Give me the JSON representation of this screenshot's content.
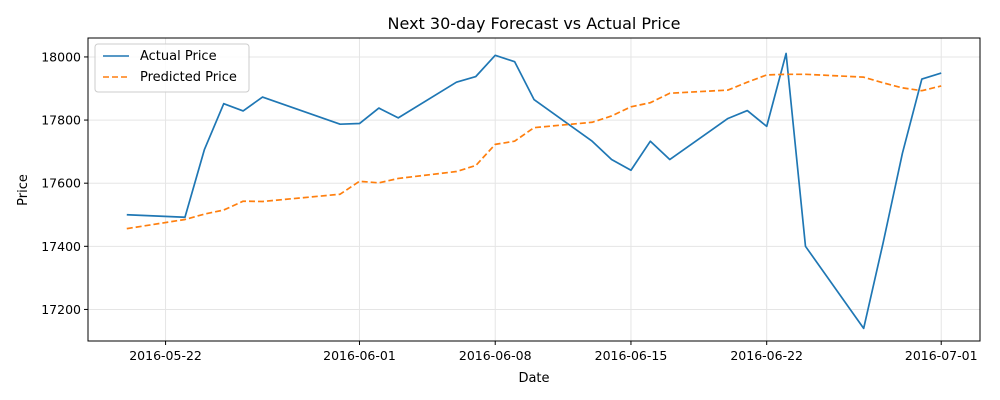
{
  "chart_data": {
    "type": "line",
    "title": "Next 30-day Forecast vs Actual Price",
    "xlabel": "Date",
    "ylabel": "Price",
    "xlim": [
      "2016-05-18",
      "2016-07-03"
    ],
    "ylim": [
      17100,
      18060
    ],
    "x_ticks": [
      "2016-05-22",
      "2016-06-01",
      "2016-06-08",
      "2016-06-15",
      "2016-06-22",
      "2016-07-01"
    ],
    "y_ticks": [
      17200,
      17400,
      17600,
      17800,
      18000
    ],
    "grid": true,
    "legend_position": "top-left",
    "series": [
      {
        "name": "Actual Price",
        "color": "#1f77b4",
        "style": "solid",
        "x": [
          "2016-05-20",
          "2016-05-23",
          "2016-05-24",
          "2016-05-25",
          "2016-05-26",
          "2016-05-27",
          "2016-05-31",
          "2016-06-01",
          "2016-06-02",
          "2016-06-03",
          "2016-06-06",
          "2016-06-07",
          "2016-06-08",
          "2016-06-09",
          "2016-06-10",
          "2016-06-13",
          "2016-06-14",
          "2016-06-15",
          "2016-06-16",
          "2016-06-17",
          "2016-06-20",
          "2016-06-21",
          "2016-06-22",
          "2016-06-23",
          "2016-06-24",
          "2016-06-27",
          "2016-06-28",
          "2016-06-29",
          "2016-06-30",
          "2016-07-01"
        ],
        "values": [
          17500,
          17492,
          17706,
          17852,
          17829,
          17873,
          17787,
          17789,
          17838,
          17807,
          17920,
          17938,
          18005,
          17985,
          17865,
          17733,
          17675,
          17641,
          17733,
          17675,
          17805,
          17830,
          17780,
          18011,
          17400,
          17140,
          17410,
          17695,
          17930,
          17949
        ]
      },
      {
        "name": "Predicted Price",
        "color": "#ff7f0e",
        "style": "dashed",
        "x": [
          "2016-05-20",
          "2016-05-23",
          "2016-05-24",
          "2016-05-25",
          "2016-05-26",
          "2016-05-27",
          "2016-05-31",
          "2016-06-01",
          "2016-06-02",
          "2016-06-03",
          "2016-06-06",
          "2016-06-07",
          "2016-06-08",
          "2016-06-09",
          "2016-06-10",
          "2016-06-13",
          "2016-06-14",
          "2016-06-15",
          "2016-06-16",
          "2016-06-17",
          "2016-06-20",
          "2016-06-21",
          "2016-06-22",
          "2016-06-23",
          "2016-06-24",
          "2016-06-27",
          "2016-06-28",
          "2016-06-29",
          "2016-06-30",
          "2016-07-01"
        ],
        "values": [
          17456,
          17485,
          17502,
          17515,
          17543,
          17542,
          17565,
          17606,
          17601,
          17615,
          17637,
          17656,
          17723,
          17733,
          17776,
          17793,
          17813,
          17842,
          17855,
          17885,
          17895,
          17920,
          17943,
          17945,
          17945,
          17936,
          17918,
          17902,
          17893,
          17908
        ]
      }
    ]
  }
}
